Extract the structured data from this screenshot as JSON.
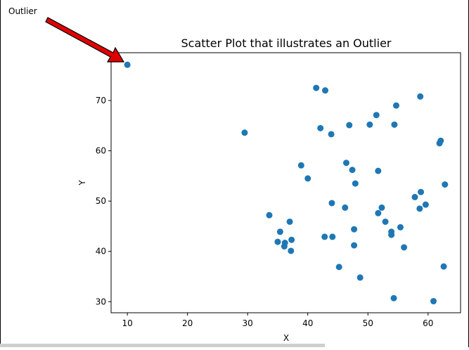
{
  "chart_data": {
    "type": "scatter",
    "title": "Scatter Plot that illustrates an Outlier",
    "xlabel": "X",
    "ylabel": "Y",
    "annotation": "Outlier",
    "color": "#1f77b4",
    "xlim": [
      7.3,
      65.4
    ],
    "ylim": [
      27.8,
      79.5
    ],
    "xticks": [
      10,
      20,
      30,
      40,
      50,
      60
    ],
    "yticks": [
      30,
      40,
      50,
      60,
      70
    ],
    "x": [
      10,
      41.4,
      42.9,
      58.7,
      54.7,
      51.4,
      50.3,
      54.4,
      46.9,
      42.1,
      43.9,
      29.5,
      62.1,
      61.9,
      38.9,
      46.4,
      47.4,
      51.7,
      40.0,
      47.9,
      62.8,
      58.8,
      57.8,
      59.6,
      44.0,
      52.3,
      46.2,
      58.6,
      51.7,
      33.6,
      52.9,
      37.0,
      55.4,
      47.7,
      35.4,
      53.9,
      53.9,
      42.8,
      44.1,
      37.3,
      35.0,
      36.2,
      36.1,
      47.7,
      56.0,
      37.2,
      45.2,
      62.6,
      48.7,
      54.3,
      60.9
    ],
    "values": [
      77.1,
      72.5,
      72.0,
      70.8,
      69.0,
      67.1,
      65.2,
      65.2,
      65.1,
      64.5,
      63.3,
      63.6,
      62.0,
      61.5,
      57.1,
      57.6,
      56.2,
      56.0,
      54.5,
      53.5,
      53.3,
      51.8,
      50.8,
      49.3,
      49.6,
      48.7,
      48.7,
      48.5,
      47.6,
      47.2,
      45.9,
      45.9,
      44.8,
      44.4,
      43.9,
      43.9,
      43.3,
      42.9,
      42.9,
      42.3,
      41.9,
      41.7,
      41.0,
      41.2,
      40.8,
      40.1,
      36.9,
      37.0,
      34.8,
      30.7,
      30.1
    ]
  }
}
